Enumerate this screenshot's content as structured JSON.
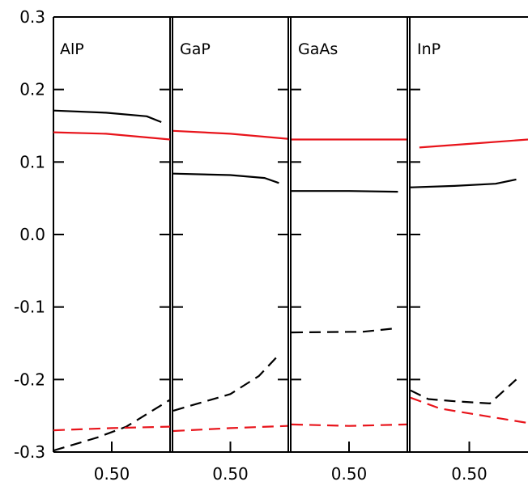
{
  "chart_data": {
    "type": "line",
    "y_ticks": [
      "0.3",
      "0.2",
      "0.1",
      "0.0",
      "-0.1",
      "-0.2",
      "-0.3"
    ],
    "y_values": [
      0.3,
      0.2,
      0.1,
      0.0,
      -0.1,
      -0.2,
      -0.3
    ],
    "ylim": [
      -0.3,
      0.3
    ],
    "x_tick_label": "0.50",
    "grid": false,
    "colors": {
      "black": "#000000",
      "red": "#e8141b"
    },
    "panels": [
      {
        "name": "AlP",
        "xlim": [
          0.3,
          0.7
        ],
        "x_tick": 0.5,
        "series": [
          {
            "color": "black",
            "style": "solid",
            "x": [
              0.3,
              0.48,
              0.62,
              0.67
            ],
            "y": [
              0.171,
              0.168,
              0.163,
              0.155
            ]
          },
          {
            "color": "red",
            "style": "solid",
            "x": [
              0.3,
              0.48,
              0.7
            ],
            "y": [
              0.141,
              0.139,
              0.131
            ]
          },
          {
            "color": "black",
            "style": "dashed",
            "x": [
              0.3,
              0.45,
              0.55,
              0.7
            ],
            "y": [
              -0.298,
              -0.28,
              -0.265,
              -0.228
            ]
          },
          {
            "color": "red",
            "style": "dashed",
            "x": [
              0.3,
              0.5,
              0.7
            ],
            "y": [
              -0.27,
              -0.267,
              -0.265
            ]
          }
        ]
      },
      {
        "name": "GaP",
        "xlim": [
          0.3,
          0.7
        ],
        "x_tick": 0.5,
        "series": [
          {
            "color": "red",
            "style": "solid",
            "x": [
              0.3,
              0.5,
              0.7
            ],
            "y": [
              0.143,
              0.139,
              0.132
            ]
          },
          {
            "color": "black",
            "style": "solid",
            "x": [
              0.3,
              0.5,
              0.62,
              0.67
            ],
            "y": [
              0.084,
              0.082,
              0.078,
              0.071
            ]
          },
          {
            "color": "black",
            "style": "dashed",
            "x": [
              0.3,
              0.5,
              0.6,
              0.66
            ],
            "y": [
              -0.243,
              -0.22,
              -0.195,
              -0.17
            ]
          },
          {
            "color": "red",
            "style": "dashed",
            "x": [
              0.3,
              0.5,
              0.7
            ],
            "y": [
              -0.271,
              -0.267,
              -0.264
            ]
          }
        ]
      },
      {
        "name": "GaAs",
        "xlim": [
          0.3,
          0.7
        ],
        "x_tick": 0.5,
        "series": [
          {
            "color": "red",
            "style": "solid",
            "x": [
              0.3,
              0.7
            ],
            "y": [
              0.131,
              0.131
            ]
          },
          {
            "color": "black",
            "style": "solid",
            "x": [
              0.3,
              0.5,
              0.67
            ],
            "y": [
              0.06,
              0.06,
              0.059
            ]
          },
          {
            "color": "black",
            "style": "dashed",
            "x": [
              0.3,
              0.55,
              0.67
            ],
            "y": [
              -0.135,
              -0.134,
              -0.129
            ]
          },
          {
            "color": "red",
            "style": "dashed",
            "x": [
              0.3,
              0.5,
              0.7
            ],
            "y": [
              -0.262,
              -0.264,
              -0.262
            ]
          }
        ]
      },
      {
        "name": "InP",
        "xlim": [
          0.3,
          0.7
        ],
        "x_tick": 0.5,
        "series": [
          {
            "color": "red",
            "style": "solid",
            "x": [
              0.33,
              0.5,
              0.7
            ],
            "y": [
              0.12,
              0.125,
              0.131
            ]
          },
          {
            "color": "black",
            "style": "solid",
            "x": [
              0.3,
              0.45,
              0.59,
              0.66
            ],
            "y": [
              0.065,
              0.067,
              0.07,
              0.076
            ]
          },
          {
            "color": "black",
            "style": "dashed",
            "x": [
              0.3,
              0.36,
              0.45,
              0.57,
              0.66
            ],
            "y": [
              -0.215,
              -0.227,
              -0.23,
              -0.233,
              -0.2
            ]
          },
          {
            "color": "red",
            "style": "dashed",
            "x": [
              0.3,
              0.4,
              0.55,
              0.7
            ],
            "y": [
              -0.225,
              -0.24,
              -0.25,
              -0.26
            ]
          }
        ]
      }
    ]
  }
}
